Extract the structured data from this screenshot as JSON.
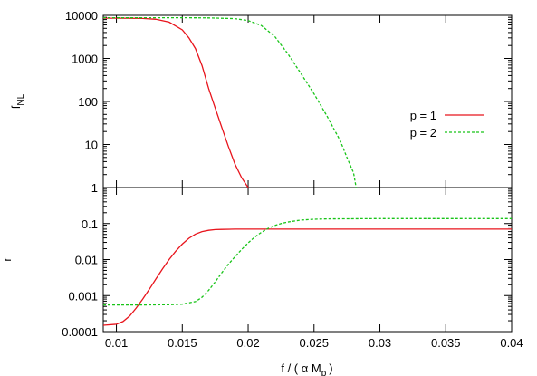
{
  "chart_data": [
    {
      "type": "line",
      "panel": "top",
      "ylabel": "f",
      "ylabel_sub": "NL",
      "yscale": "log",
      "xlim": [
        0.009,
        0.04
      ],
      "ylim": [
        1,
        10000
      ],
      "ytick_labels": [
        "1",
        "10",
        "100",
        "1000",
        "10000"
      ],
      "ytick_values": [
        1,
        10,
        100,
        1000,
        10000
      ],
      "legend": {
        "placement": "right",
        "entries": [
          "p = 1",
          "p = 2"
        ]
      },
      "series": [
        {
          "name": "p = 1",
          "color": "#e8141c",
          "style": "solid",
          "x": [
            0.009,
            0.01,
            0.011,
            0.012,
            0.013,
            0.014,
            0.015,
            0.0155,
            0.016,
            0.0165,
            0.017,
            0.0175,
            0.018,
            0.0185,
            0.019,
            0.0195,
            0.02
          ],
          "y": [
            8600,
            8600,
            8580,
            8500,
            8100,
            7000,
            4600,
            3000,
            1700,
            680,
            200,
            70,
            25,
            9,
            3.5,
            1.7,
            1.0
          ]
        },
        {
          "name": "p = 2",
          "color": "#19c419",
          "style": "dashed",
          "x": [
            0.009,
            0.012,
            0.015,
            0.017,
            0.019,
            0.02,
            0.021,
            0.022,
            0.023,
            0.024,
            0.025,
            0.026,
            0.027,
            0.0275,
            0.028,
            0.0282
          ],
          "y": [
            8800,
            8800,
            8800,
            8750,
            8400,
            7600,
            5800,
            3300,
            1300,
            450,
            150,
            45,
            12,
            5,
            2.2,
            1.0
          ]
        }
      ]
    },
    {
      "type": "line",
      "panel": "bottom",
      "ylabel": "r",
      "xlabel": "f / ( α M",
      "xlabel_sub": "p",
      "xlabel_suffix": ")",
      "yscale": "log",
      "xlim": [
        0.009,
        0.04
      ],
      "ylim": [
        0.0001,
        1
      ],
      "xtick_labels": [
        "0.01",
        "0.015",
        "0.02",
        "0.025",
        "0.03",
        "0.035",
        "0.04"
      ],
      "xtick_values": [
        0.01,
        0.015,
        0.02,
        0.025,
        0.03,
        0.035,
        0.04
      ],
      "ytick_labels": [
        "0.0001",
        "0.001",
        "0.01",
        "0.1"
      ],
      "ytick_values": [
        0.0001,
        0.001,
        0.01,
        0.1
      ],
      "series": [
        {
          "name": "p = 1",
          "color": "#e8141c",
          "style": "solid",
          "x": [
            0.009,
            0.01,
            0.0105,
            0.011,
            0.0115,
            0.012,
            0.0125,
            0.013,
            0.0135,
            0.014,
            0.0145,
            0.015,
            0.0155,
            0.016,
            0.0165,
            0.017,
            0.0175,
            0.018,
            0.019,
            0.02,
            0.025,
            0.03,
            0.035,
            0.04
          ],
          "y": [
            0.00015,
            0.00016,
            0.00019,
            0.00027,
            0.00045,
            0.0008,
            0.0015,
            0.0029,
            0.0055,
            0.01,
            0.017,
            0.027,
            0.039,
            0.051,
            0.06,
            0.065,
            0.068,
            0.069,
            0.07,
            0.07,
            0.07,
            0.07,
            0.07,
            0.07
          ]
        },
        {
          "name": "p = 2",
          "color": "#19c419",
          "style": "dashed",
          "x": [
            0.009,
            0.012,
            0.014,
            0.015,
            0.016,
            0.0165,
            0.017,
            0.0175,
            0.018,
            0.0185,
            0.019,
            0.0195,
            0.02,
            0.0205,
            0.021,
            0.0215,
            0.022,
            0.0225,
            0.023,
            0.024,
            0.025,
            0.026,
            0.03,
            0.035,
            0.04
          ],
          "y": [
            0.00055,
            0.00055,
            0.00056,
            0.00058,
            0.00068,
            0.0009,
            0.0014,
            0.0024,
            0.0043,
            0.0074,
            0.012,
            0.019,
            0.029,
            0.042,
            0.057,
            0.073,
            0.088,
            0.1,
            0.11,
            0.125,
            0.132,
            0.135,
            0.137,
            0.137,
            0.137
          ]
        }
      ]
    }
  ]
}
